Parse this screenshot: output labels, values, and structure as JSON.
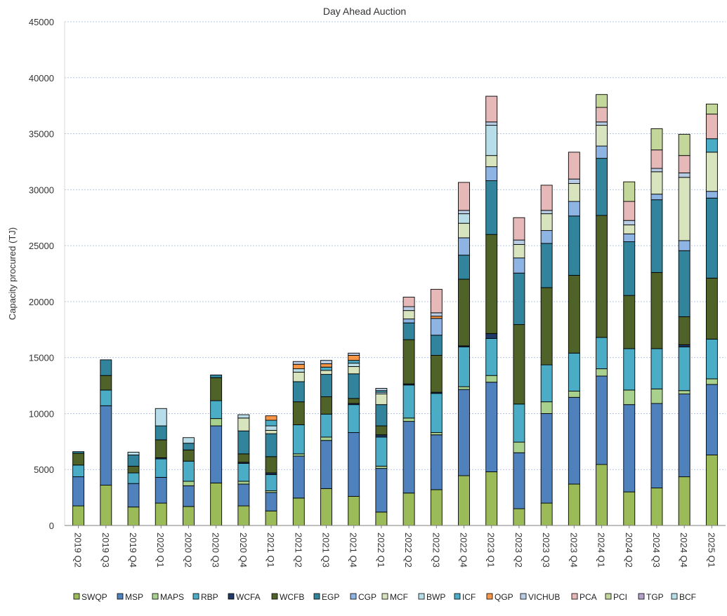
{
  "chart_data": {
    "type": "bar",
    "stacked": true,
    "title": "Day Ahead Auction",
    "xlabel": "",
    "ylabel": "Capacity procured (TJ)",
    "ylim": [
      0,
      45000
    ],
    "yticks": [
      0,
      5000,
      10000,
      15000,
      20000,
      25000,
      30000,
      35000,
      40000,
      45000
    ],
    "grid": true,
    "legend_position": "bottom",
    "categories": [
      "2019 Q2",
      "2019 Q3",
      "2019 Q4",
      "2020 Q1",
      "2020 Q2",
      "2020 Q3",
      "2020 Q4",
      "2021 Q1",
      "2021 Q2",
      "2021 Q3",
      "2021 Q4",
      "2022 Q1",
      "2022 Q2",
      "2022 Q3",
      "2022 Q4",
      "2023 Q1",
      "2023 Q2",
      "2023 Q3",
      "2023 Q4",
      "2024 Q1",
      "2024 Q2",
      "2024 Q3",
      "2024 Q4",
      "2025 Q1"
    ],
    "series": [
      {
        "name": "SWQP",
        "color": "#9bbb59",
        "values": [
          1750,
          3600,
          1650,
          2000,
          1700,
          3800,
          1750,
          1300,
          2450,
          3300,
          2600,
          1200,
          2900,
          3200,
          4450,
          4800,
          1500,
          2000,
          3700,
          5450,
          3000,
          3350,
          4350,
          6300
        ]
      },
      {
        "name": "MSP",
        "color": "#4f81bd",
        "values": [
          2600,
          7100,
          2100,
          2300,
          1850,
          5100,
          1950,
          1650,
          3750,
          4300,
          5700,
          3900,
          6400,
          4900,
          7700,
          8000,
          5000,
          8000,
          7750,
          7900,
          7800,
          7550,
          7400,
          6300
        ]
      },
      {
        "name": "MAPS",
        "color": "#a9d18e",
        "values": [
          0,
          0,
          0,
          0,
          400,
          650,
          250,
          150,
          200,
          300,
          0,
          200,
          300,
          200,
          250,
          600,
          950,
          1050,
          550,
          650,
          1300,
          1300,
          300,
          500
        ]
      },
      {
        "name": "RBP",
        "color": "#4bacc6",
        "values": [
          1050,
          1400,
          950,
          1650,
          1800,
          1600,
          1600,
          1450,
          2600,
          2050,
          2500,
          2600,
          2950,
          3500,
          3550,
          3300,
          3400,
          3300,
          3400,
          2800,
          3700,
          3600,
          3900,
          3550
        ]
      },
      {
        "name": "WCFA",
        "color": "#1f3864",
        "values": [
          0,
          0,
          0,
          100,
          0,
          0,
          100,
          150,
          0,
          0,
          100,
          200,
          100,
          100,
          100,
          450,
          0,
          0,
          0,
          0,
          0,
          0,
          200,
          0
        ]
      },
      {
        "name": "WCFB",
        "color": "#4f6228",
        "values": [
          1050,
          1300,
          600,
          1600,
          1000,
          2050,
          750,
          1450,
          2050,
          1550,
          450,
          800,
          3950,
          3300,
          5950,
          8850,
          7100,
          6900,
          6950,
          10900,
          4750,
          6800,
          2500,
          5450
        ]
      },
      {
        "name": "EGP",
        "color": "#31849b",
        "values": [
          150,
          1400,
          1000,
          1250,
          600,
          250,
          2050,
          2050,
          1800,
          2000,
          2200,
          1900,
          1500,
          1800,
          2150,
          4800,
          4600,
          3950,
          5300,
          5100,
          4800,
          6500,
          5900,
          7150
        ]
      },
      {
        "name": "CGP",
        "color": "#8eb4e3",
        "values": [
          0,
          0,
          0,
          0,
          0,
          0,
          0,
          0,
          0,
          0,
          0,
          0,
          350,
          1500,
          1550,
          1250,
          1350,
          1150,
          1300,
          1100,
          700,
          500,
          900,
          600
        ]
      },
      {
        "name": "MCF",
        "color": "#d7e4bd",
        "values": [
          0,
          0,
          0,
          0,
          0,
          0,
          1150,
          300,
          850,
          350,
          650,
          950,
          750,
          0,
          1300,
          1000,
          1200,
          1500,
          1600,
          1850,
          800,
          2000,
          5650,
          3500
        ]
      },
      {
        "name": "BWP",
        "color": "#b7dee8",
        "values": [
          0,
          0,
          250,
          1550,
          500,
          0,
          300,
          400,
          300,
          0,
          300,
          150,
          0,
          0,
          850,
          2700,
          0,
          0,
          0,
          0,
          0,
          0,
          0,
          0
        ]
      },
      {
        "name": "ICF",
        "color": "#4bacc6",
        "values": [
          0,
          0,
          0,
          0,
          0,
          0,
          0,
          500,
          0,
          300,
          250,
          150,
          0,
          0,
          0,
          0,
          0,
          0,
          0,
          0,
          0,
          0,
          0,
          1200
        ]
      },
      {
        "name": "QGP",
        "color": "#f79646",
        "values": [
          0,
          0,
          0,
          0,
          0,
          0,
          0,
          400,
          400,
          300,
          450,
          0,
          0,
          200,
          0,
          0,
          0,
          0,
          0,
          0,
          0,
          0,
          0,
          0
        ]
      },
      {
        "name": "VICHUB",
        "color": "#b8cce4",
        "values": [
          0,
          0,
          0,
          0,
          0,
          0,
          0,
          0,
          250,
          300,
          200,
          200,
          350,
          300,
          300,
          300,
          400,
          300,
          400,
          300,
          400,
          300,
          400,
          0
        ]
      },
      {
        "name": "PCA",
        "color": "#e6b9b8",
        "values": [
          0,
          0,
          0,
          0,
          0,
          0,
          0,
          0,
          0,
          0,
          0,
          0,
          850,
          2100,
          2500,
          2300,
          2000,
          2250,
          2400,
          1300,
          1700,
          1650,
          1550,
          2200
        ]
      },
      {
        "name": "PCI",
        "color": "#c4d79b",
        "values": [
          0,
          0,
          0,
          0,
          0,
          0,
          0,
          0,
          0,
          0,
          0,
          0,
          0,
          0,
          0,
          0,
          0,
          0,
          0,
          1150,
          1750,
          1900,
          1900,
          900
        ]
      },
      {
        "name": "TGP",
        "color": "#b3a2c7",
        "values": [
          0,
          0,
          0,
          0,
          0,
          0,
          0,
          0,
          0,
          0,
          0,
          0,
          0,
          0,
          0,
          0,
          0,
          0,
          0,
          0,
          0,
          0,
          0,
          0
        ]
      },
      {
        "name": "BCF",
        "color": "#b7dee8",
        "values": [
          0,
          0,
          0,
          0,
          0,
          0,
          0,
          0,
          0,
          0,
          0,
          0,
          0,
          0,
          0,
          0,
          0,
          0,
          0,
          0,
          0,
          0,
          0,
          0
        ]
      }
    ]
  }
}
